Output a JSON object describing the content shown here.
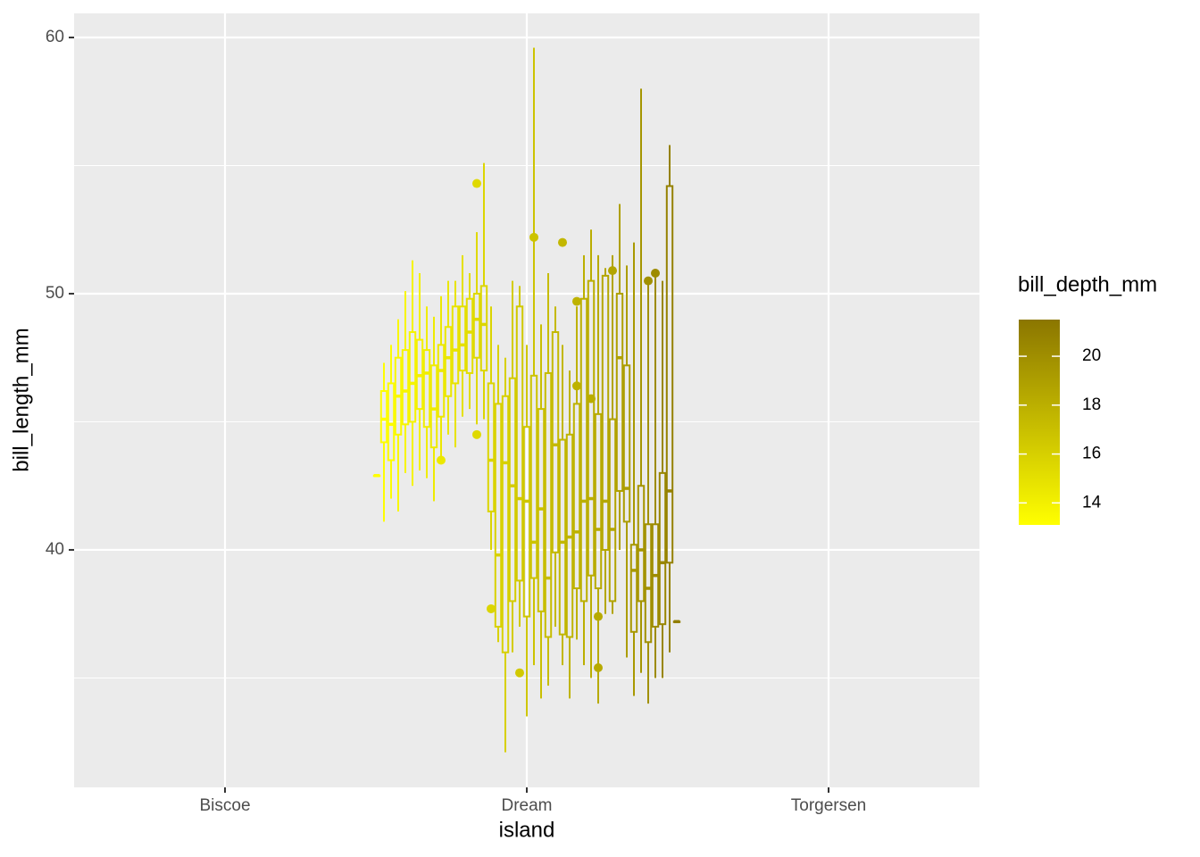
{
  "chart_data": {
    "type": "boxplot",
    "x_label": "island",
    "y_label": "bill_length_mm",
    "categories": [
      "Biscoe",
      "Dream",
      "Torgersen"
    ],
    "ylim": [
      30.73,
      60.94
    ],
    "yticks": [
      40,
      50,
      60
    ],
    "grid": true,
    "color_legend": {
      "title": "bill_depth_mm",
      "range": [
        13.1,
        21.5
      ],
      "ticks": [
        14,
        16,
        18,
        20
      ],
      "colors": [
        "#ffff00",
        "#8b7600"
      ]
    },
    "boxes": [
      {
        "depth": 13.1,
        "min": 42.9,
        "q1": 42.9,
        "median": 42.9,
        "q3": 42.9,
        "max": 42.9
      },
      {
        "depth": 13.2,
        "min": 41.1,
        "q1": 44.2,
        "median": 45.1,
        "q3": 46.2,
        "max": 47.3
      },
      {
        "depth": 13.3,
        "min": 42.0,
        "q1": 43.5,
        "median": 44.9,
        "q3": 46.5,
        "max": 48.0
      },
      {
        "depth": 13.5,
        "min": 41.5,
        "q1": 44.5,
        "median": 46.0,
        "q3": 47.5,
        "max": 49.0
      },
      {
        "depth": 13.7,
        "min": 43.0,
        "q1": 44.9,
        "median": 46.2,
        "q3": 47.8,
        "max": 50.1
      },
      {
        "depth": 13.8,
        "min": 42.5,
        "q1": 45.0,
        "median": 46.5,
        "q3": 48.5,
        "max": 51.3
      },
      {
        "depth": 14.0,
        "min": 43.1,
        "q1": 45.5,
        "median": 46.8,
        "q3": 48.2,
        "max": 50.8
      },
      {
        "depth": 14.2,
        "min": 42.8,
        "q1": 44.8,
        "median": 46.9,
        "q3": 47.8,
        "max": 49.5
      },
      {
        "depth": 14.3,
        "min": 41.9,
        "q1": 44.0,
        "median": 45.5,
        "q3": 47.2,
        "max": 49.1
      },
      {
        "depth": 14.5,
        "min": 43.5,
        "q1": 45.2,
        "median": 47.0,
        "q3": 48.0,
        "max": 49.9,
        "outliers": [
          43.5
        ]
      },
      {
        "depth": 14.6,
        "min": 44.5,
        "q1": 46.0,
        "median": 47.5,
        "q3": 48.7,
        "max": 50.5
      },
      {
        "depth": 14.8,
        "min": 44.0,
        "q1": 46.5,
        "median": 47.8,
        "q3": 49.5,
        "max": 50.5
      },
      {
        "depth": 15.0,
        "min": 45.2,
        "q1": 47.0,
        "median": 48.0,
        "q3": 49.5,
        "max": 51.5
      },
      {
        "depth": 15.2,
        "min": 45.5,
        "q1": 46.9,
        "median": 48.5,
        "q3": 49.8,
        "max": 50.8
      },
      {
        "depth": 15.4,
        "min": 44.9,
        "q1": 47.5,
        "median": 49.0,
        "q3": 50.0,
        "max": 52.4,
        "outliers": [
          54.3,
          44.5
        ]
      },
      {
        "depth": 15.6,
        "min": 45.1,
        "q1": 47.0,
        "median": 48.8,
        "q3": 50.3,
        "max": 55.1
      },
      {
        "depth": 15.7,
        "min": 40.0,
        "q1": 41.5,
        "median": 43.5,
        "q3": 46.5,
        "max": 49.5,
        "outliers": [
          37.7
        ]
      },
      {
        "depth": 15.9,
        "min": 36.4,
        "q1": 37.0,
        "median": 39.8,
        "q3": 45.7,
        "max": 48.0
      },
      {
        "depth": 16.0,
        "min": 32.1,
        "q1": 36.0,
        "median": 43.4,
        "q3": 46.0,
        "max": 47.5
      },
      {
        "depth": 16.2,
        "min": 36.0,
        "q1": 38.0,
        "median": 42.5,
        "q3": 46.7,
        "max": 50.5
      },
      {
        "depth": 16.4,
        "min": 37.0,
        "q1": 38.8,
        "median": 42.0,
        "q3": 49.5,
        "max": 50.3,
        "outliers": [
          35.2
        ]
      },
      {
        "depth": 16.6,
        "min": 33.5,
        "q1": 37.4,
        "median": 41.9,
        "q3": 44.8,
        "max": 48.0
      },
      {
        "depth": 16.8,
        "min": 35.5,
        "q1": 38.9,
        "median": 40.3,
        "q3": 46.8,
        "max": 59.6,
        "outliers": [
          52.2
        ]
      },
      {
        "depth": 17.0,
        "min": 34.2,
        "q1": 37.6,
        "median": 41.6,
        "q3": 45.5,
        "max": 48.8
      },
      {
        "depth": 17.2,
        "min": 34.7,
        "q1": 36.6,
        "median": 38.9,
        "q3": 46.9,
        "max": 50.8
      },
      {
        "depth": 17.4,
        "min": 37.0,
        "q1": 39.9,
        "median": 44.1,
        "q3": 48.5,
        "max": 49.5
      },
      {
        "depth": 17.5,
        "min": 35.5,
        "q1": 36.7,
        "median": 40.3,
        "q3": 44.3,
        "max": 48.0,
        "outliers": [
          52.0
        ]
      },
      {
        "depth": 17.7,
        "min": 34.2,
        "q1": 36.6,
        "median": 40.5,
        "q3": 44.5,
        "max": 47.0
      },
      {
        "depth": 17.8,
        "min": 36.5,
        "q1": 38.5,
        "median": 40.7,
        "q3": 45.7,
        "max": 49.5,
        "outliers": [
          49.7,
          46.4
        ]
      },
      {
        "depth": 18.0,
        "min": 35.5,
        "q1": 38.0,
        "median": 41.9,
        "q3": 49.8,
        "max": 51.5
      },
      {
        "depth": 18.1,
        "min": 35.0,
        "q1": 39.0,
        "median": 42.0,
        "q3": 50.5,
        "max": 52.5,
        "outliers": [
          45.9
        ]
      },
      {
        "depth": 18.3,
        "min": 34.0,
        "q1": 38.5,
        "median": 40.8,
        "q3": 45.3,
        "max": 51.5,
        "outliers": [
          37.4,
          35.4
        ]
      },
      {
        "depth": 18.5,
        "min": 37.5,
        "q1": 40.0,
        "median": 41.9,
        "q3": 50.7,
        "max": 51.0
      },
      {
        "depth": 18.7,
        "min": 37.5,
        "q1": 38.0,
        "median": 40.8,
        "q3": 45.1,
        "max": 51.5,
        "outliers": [
          50.9
        ]
      },
      {
        "depth": 18.9,
        "min": 40.0,
        "q1": 42.3,
        "median": 47.5,
        "q3": 50.0,
        "max": 53.5
      },
      {
        "depth": 19.1,
        "min": 35.8,
        "q1": 41.1,
        "median": 42.4,
        "q3": 47.2,
        "max": 51.1
      },
      {
        "depth": 19.4,
        "min": 34.3,
        "q1": 36.8,
        "median": 39.2,
        "q3": 40.2,
        "max": 52.0
      },
      {
        "depth": 19.6,
        "min": 35.2,
        "q1": 38.0,
        "median": 40.0,
        "q3": 42.5,
        "max": 58.0
      },
      {
        "depth": 19.9,
        "min": 34.0,
        "q1": 36.4,
        "median": 38.5,
        "q3": 41.0,
        "max": 50.5,
        "outliers": [
          50.5
        ]
      },
      {
        "depth": 20.2,
        "min": 35.0,
        "q1": 37.0,
        "median": 39.0,
        "q3": 41.0,
        "max": 50.8,
        "outliers": [
          50.8
        ]
      },
      {
        "depth": 20.5,
        "min": 35.0,
        "q1": 37.1,
        "median": 39.5,
        "q3": 43.0,
        "max": 50.5
      },
      {
        "depth": 20.8,
        "min": 36.0,
        "q1": 39.5,
        "median": 42.3,
        "q3": 54.2,
        "max": 55.8
      },
      {
        "depth": 21.1,
        "min": 37.2,
        "q1": 37.2,
        "median": 37.2,
        "q3": 37.2,
        "max": 37.2
      }
    ]
  }
}
